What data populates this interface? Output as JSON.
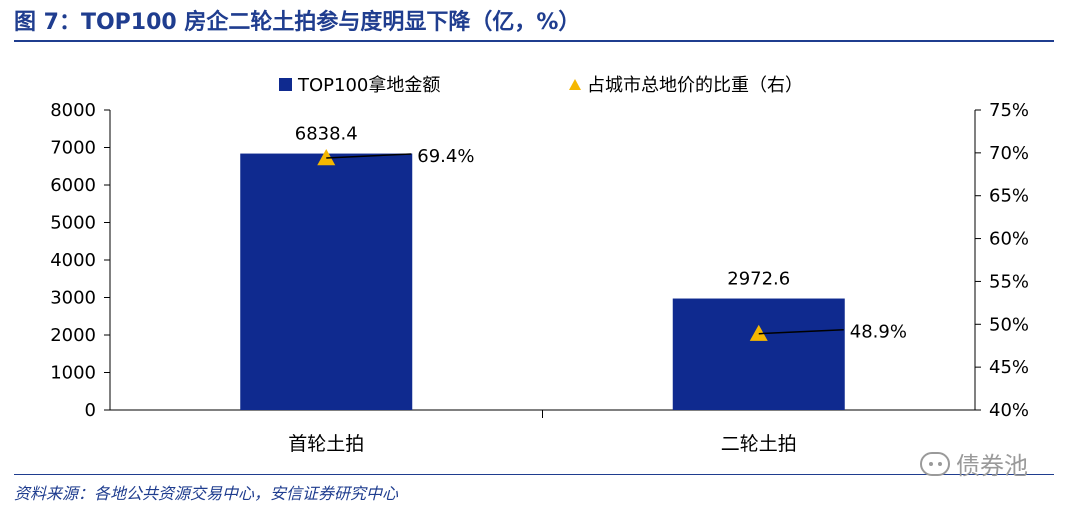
{
  "title": "图 7：TOP100 房企二轮土拍参与度明显下降（亿，%）",
  "source": "资料来源：各地公共资源交易中心，安信证券研究中心",
  "watermark": "债券池",
  "colors": {
    "bar": "#0f2a8f",
    "marker": "#f5b700",
    "accent": "#1f3d8f"
  },
  "chart_data": {
    "type": "bar",
    "categories": [
      "首轮土拍",
      "二轮土拍"
    ],
    "series": [
      {
        "name": "TOP100拿地金额",
        "kind": "bar",
        "axis": "left",
        "values": [
          6838.4,
          2972.6
        ],
        "labels": [
          "6838.4",
          "2972.6"
        ]
      },
      {
        "name": "占城市总地价的比重（右）",
        "kind": "scatter",
        "axis": "right",
        "values": [
          69.4,
          48.9
        ],
        "labels": [
          "69.4%",
          "48.9%"
        ]
      }
    ],
    "y_left": {
      "min": 0,
      "max": 8000,
      "ticks": [
        "0",
        "1000",
        "2000",
        "3000",
        "4000",
        "5000",
        "6000",
        "7000",
        "8000"
      ]
    },
    "y_right": {
      "min": 40,
      "max": 75,
      "ticks": [
        "40%",
        "45%",
        "50%",
        "55%",
        "60%",
        "65%",
        "70%",
        "75%"
      ]
    },
    "legend": "top",
    "grid": false
  }
}
